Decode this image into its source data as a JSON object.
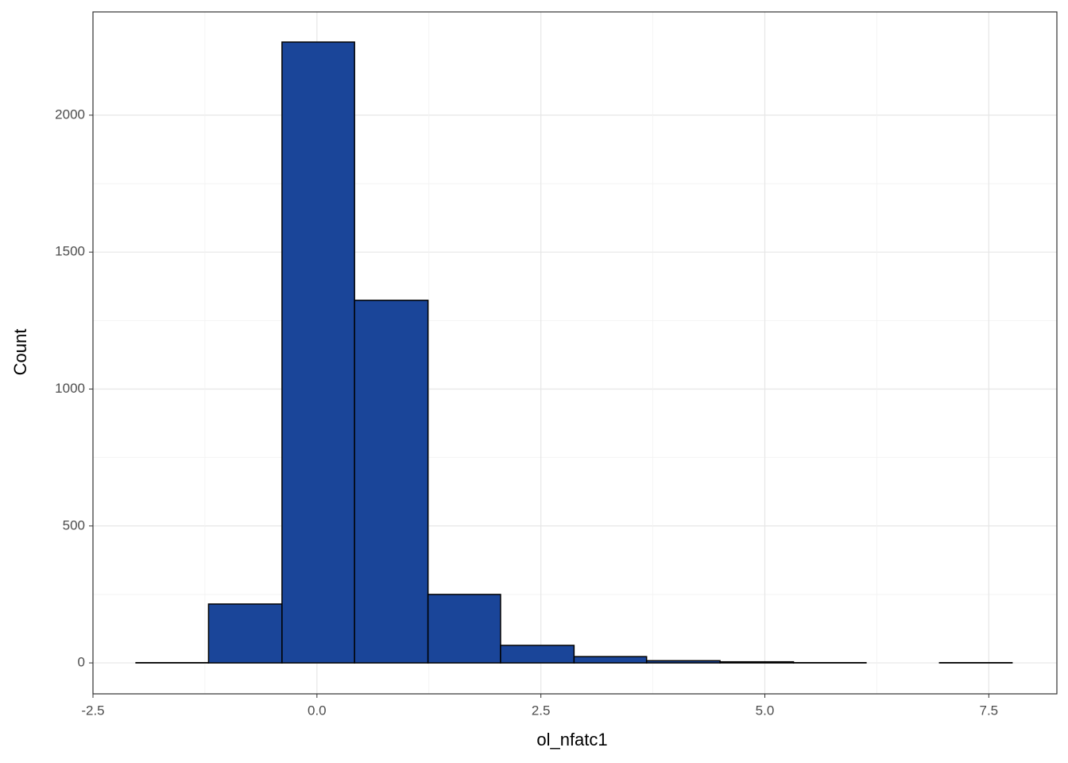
{
  "chart_data": {
    "type": "histogram",
    "x_label": "ol_nfatc1",
    "y_label": "Count",
    "bins": [
      -2.02,
      -1.21,
      -0.39,
      0.42,
      1.24,
      2.05,
      2.87,
      3.68,
      4.5,
      5.32,
      6.13,
      6.95,
      7.76
    ],
    "values": [
      1,
      215,
      2267,
      1324,
      250,
      64,
      23,
      8,
      4,
      1,
      0,
      1
    ],
    "color": "#1a4599",
    "xlim": [
      -2.5,
      8.26
    ],
    "ylim": [
      -113,
      2377
    ],
    "xticks": [
      -2.5,
      {
        "value": 0,
        "label": "0.0"
      },
      2.5,
      {
        "value": 5,
        "label": "5.0"
      },
      7.5
    ],
    "yticks": [
      0,
      500,
      1000,
      1500,
      2000
    ],
    "grid": true,
    "minor_grid": true
  }
}
